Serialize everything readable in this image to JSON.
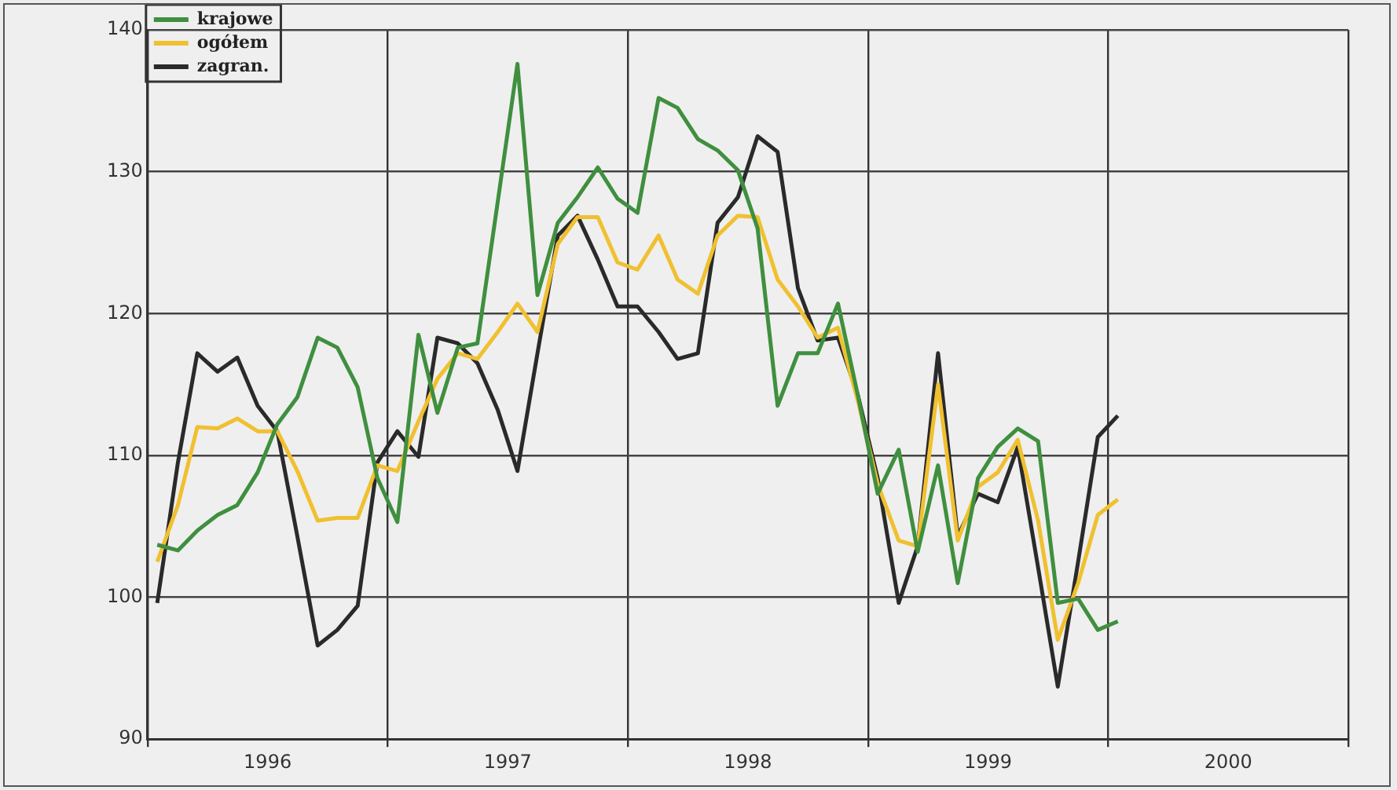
{
  "chart_data": {
    "type": "line",
    "x": [
      "1996-01-16",
      "1996-02-16",
      "1996-03-16",
      "1996-04-16",
      "1996-05-16",
      "1996-06-16",
      "1996-07-16",
      "1996-08-16",
      "1996-09-16",
      "1996-10-16",
      "1996-11-16",
      "1996-12-16",
      "1997-01-16",
      "1997-02-16",
      "1997-03-16",
      "1997-04-16",
      "1997-05-16",
      "1997-06-16",
      "1997-07-16",
      "1997-08-16",
      "1997-09-16",
      "1997-10-16",
      "1997-11-16",
      "1997-12-16",
      "1998-01-16",
      "1998-02-16",
      "1998-03-16",
      "1998-04-16",
      "1998-05-16",
      "1998-06-16",
      "1998-07-16",
      "1998-08-16",
      "1998-09-16",
      "1998-10-16",
      "1998-11-16",
      "1998-12-16",
      "1999-01-16",
      "1999-02-16",
      "1999-03-16",
      "1999-04-16",
      "1999-05-16",
      "1999-06-16",
      "1999-07-16",
      "1999-08-16",
      "1999-09-16",
      "1999-10-16",
      "1999-11-16",
      "1999-12-16",
      "2000-01-16"
    ],
    "series": [
      {
        "name": "krajowe",
        "color": "#3f8f3f",
        "values": [
          103.7,
          103.3,
          104.7,
          105.8,
          106.5,
          108.8,
          112.2,
          114.1,
          118.3,
          117.6,
          114.8,
          108.4,
          105.3,
          118.5,
          113.0,
          117.6,
          117.9,
          127.9,
          137.6,
          121.3,
          126.4,
          128.2,
          130.3,
          128.1,
          127.1,
          135.2,
          134.5,
          132.3,
          131.5,
          130.1,
          126.0,
          113.5,
          117.2,
          117.2,
          120.7,
          114.3,
          107.3,
          110.4,
          103.2,
          109.3,
          101.0,
          108.4,
          110.6,
          111.9,
          111.0,
          99.6,
          99.9,
          97.7,
          98.3
        ]
      },
      {
        "name": "ogółem",
        "color": "#f0c030",
        "values": [
          102.5,
          106.5,
          112.0,
          111.9,
          112.6,
          111.7,
          111.7,
          108.9,
          105.4,
          105.6,
          105.6,
          109.3,
          108.9,
          112.4,
          115.4,
          117.2,
          116.8,
          118.7,
          120.7,
          118.7,
          124.9,
          126.8,
          126.8,
          123.6,
          123.1,
          125.5,
          122.4,
          121.4,
          125.5,
          126.9,
          126.8,
          122.4,
          120.5,
          118.3,
          119.0,
          113.9,
          108.0,
          104.0,
          103.6,
          115.0,
          104.0,
          107.8,
          108.8,
          111.1,
          105.4,
          97.0,
          101.0,
          105.8,
          106.9
        ]
      },
      {
        "name": "zagran.",
        "color": "#2a2a2a",
        "values": [
          99.6,
          109.5,
          117.2,
          115.9,
          116.9,
          113.5,
          111.7,
          104.3,
          96.6,
          97.7,
          99.4,
          109.5,
          111.7,
          109.9,
          118.3,
          117.9,
          116.5,
          113.2,
          108.9,
          117.2,
          125.5,
          126.9,
          123.8,
          120.5,
          120.5,
          118.7,
          116.8,
          117.2,
          126.4,
          128.2,
          132.5,
          131.4,
          121.8,
          118.1,
          118.3,
          114.3,
          108.4,
          99.6,
          103.6,
          117.2,
          104.3,
          107.3,
          106.7,
          110.6,
          102.1,
          93.7,
          102.5,
          111.3,
          112.8
        ]
      }
    ],
    "xlim": [
      "1996-01",
      "2001-01"
    ],
    "xticks": [
      {
        "value": "1996-01",
        "label": null
      },
      {
        "value": "1996-07",
        "label": "1996"
      },
      {
        "value": "1997-01",
        "label": null
      },
      {
        "value": "1997-07",
        "label": "1997"
      },
      {
        "value": "1998-01",
        "label": null
      },
      {
        "value": "1998-07",
        "label": "1998"
      },
      {
        "value": "1999-01",
        "label": null
      },
      {
        "value": "1999-07",
        "label": "1999"
      },
      {
        "value": "2000-01",
        "label": null
      },
      {
        "value": "2000-07",
        "label": "2000"
      },
      {
        "value": "2001-01",
        "label": null
      }
    ],
    "ylim": [
      90,
      140
    ],
    "yticks": [
      90,
      100,
      110,
      120,
      130,
      140
    ],
    "grid": true,
    "legend": "top left",
    "marker": "none",
    "line_style": "solid"
  }
}
